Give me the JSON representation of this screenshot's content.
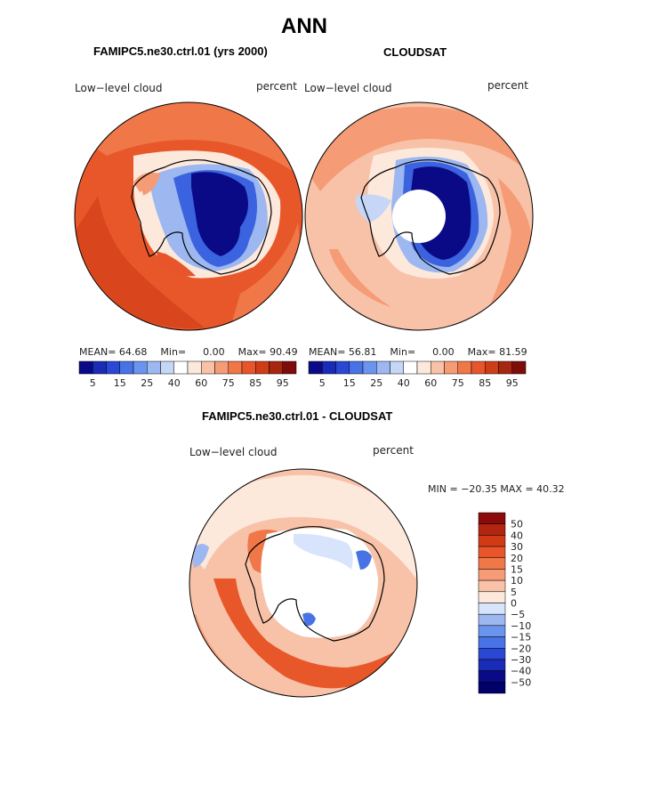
{
  "page": {
    "title": "ANN",
    "variable_label": "Low−level cloud",
    "units_label": "percent"
  },
  "colors": {
    "ocean_orange": "#e8572a",
    "ocean_light": "#f6b497",
    "ocean_mid": "#f08a5d",
    "ice_white": "#fde8dc",
    "deep_blue": "#0a0a86",
    "mid_blue": "#3b63e0",
    "light_blue": "#9db7f0",
    "coast": "#000000"
  },
  "chart_data": [
    {
      "type": "heatmap",
      "projection": "south-polar-stereographic",
      "panel": "left",
      "title": "FAMIPC5.ne30.ctrl.01 (yrs 2000)",
      "label_left": "Low−level cloud",
      "label_right": "percent",
      "stats_mean_label": "MEAN=",
      "stats_mean": "64.68",
      "stats_min_label": "Min=",
      "stats_min": "0.00",
      "stats_max_label": "Max=",
      "stats_max": "90.49",
      "colorbar_ticks": [
        "5",
        "15",
        "25",
        "40",
        "60",
        "75",
        "85",
        "95"
      ],
      "colorbar_levels": [
        5,
        10,
        15,
        20,
        25,
        30,
        40,
        50,
        60,
        70,
        75,
        80,
        85,
        90,
        95
      ],
      "colorbar_colors": [
        "#0a0a86",
        "#1a2bb8",
        "#2a48d3",
        "#4873e6",
        "#6b94ee",
        "#9db7f0",
        "#c5d6f7",
        "#ffffff",
        "#fde8dc",
        "#f8c2a8",
        "#f59b75",
        "#ef7748",
        "#e8552a",
        "#cf3d18",
        "#a72612",
        "#7f0b0b"
      ]
    },
    {
      "type": "heatmap",
      "projection": "south-polar-stereographic",
      "panel": "right",
      "title": "CLOUDSAT",
      "label_left": "Low−level cloud",
      "label_right": "percent",
      "stats_mean_label": "MEAN=",
      "stats_mean": "56.81",
      "stats_min_label": "Min=",
      "stats_min": "0.00",
      "stats_max_label": "Max=",
      "stats_max": "81.59",
      "colorbar_ticks": [
        "5",
        "15",
        "25",
        "40",
        "60",
        "75",
        "85",
        "95"
      ],
      "colorbar_levels": [
        5,
        10,
        15,
        20,
        25,
        30,
        40,
        50,
        60,
        70,
        75,
        80,
        85,
        90,
        95
      ],
      "colorbar_colors": [
        "#0a0a86",
        "#1a2bb8",
        "#2a48d3",
        "#4873e6",
        "#6b94ee",
        "#9db7f0",
        "#c5d6f7",
        "#ffffff",
        "#fde8dc",
        "#f8c2a8",
        "#f59b75",
        "#ef7748",
        "#e8552a",
        "#cf3d18",
        "#a72612",
        "#7f0b0b"
      ]
    },
    {
      "type": "heatmap",
      "projection": "south-polar-stereographic",
      "panel": "difference",
      "title": "FAMIPC5.ne30.ctrl.01 - CLOUDSAT",
      "label_left": "Low−level cloud",
      "label_right": "percent",
      "min_label": "MIN =",
      "min": "−20.35",
      "max_label": "MAX =",
      "max": "40.32",
      "colorbar_ticks": [
        "50",
        "40",
        "30",
        "20",
        "15",
        "10",
        "5",
        "0",
        "−5",
        "−10",
        "−15",
        "−20",
        "−30",
        "−40",
        "−50"
      ],
      "colorbar_colors": [
        "#8b0a0a",
        "#b22510",
        "#d23a16",
        "#e8552a",
        "#ef7748",
        "#f59b75",
        "#f8c2a8",
        "#fde8dc",
        "#d7e4fb",
        "#9db7f0",
        "#6b94ee",
        "#4873e6",
        "#2a48d3",
        "#1a2bb8",
        "#0a0a86",
        "#00006a"
      ]
    }
  ]
}
